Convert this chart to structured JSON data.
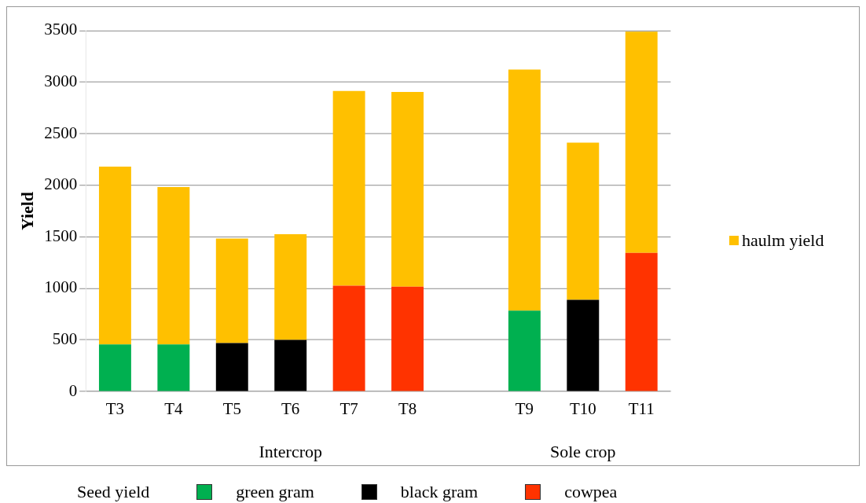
{
  "chart_data": {
    "type": "bar",
    "stacked": true,
    "ylabel": "Yield",
    "categories": [
      "T3",
      "T4",
      "T5",
      "T6",
      "T7",
      "T8",
      null,
      "T9",
      "T10",
      "T11"
    ],
    "series": [
      {
        "name": "green gram",
        "color": "#00b050",
        "values": [
          457,
          457,
          null,
          null,
          null,
          null,
          null,
          784,
          null,
          null
        ]
      },
      {
        "name": "black gram",
        "color": "#000000",
        "values": [
          null,
          null,
          470,
          500,
          null,
          null,
          null,
          null,
          888,
          null
        ]
      },
      {
        "name": "cowpea",
        "color": "#ff3300",
        "values": [
          null,
          null,
          null,
          null,
          1026,
          1017,
          null,
          null,
          null,
          1345
        ]
      },
      {
        "name": "haulm yield",
        "color": "#ffc000",
        "values": [
          1724,
          1526,
          1013,
          1026,
          1888,
          1888,
          null,
          2337,
          1526,
          2145
        ]
      }
    ],
    "ylim": [
      0,
      3500
    ],
    "yticks": [
      0,
      500,
      1000,
      1500,
      2000,
      2500,
      3000,
      3500
    ],
    "grid": "y",
    "legend": "bottom",
    "legend_title": "Seed yield",
    "annotations": [
      "Intercrop",
      "Sole crop"
    ]
  }
}
